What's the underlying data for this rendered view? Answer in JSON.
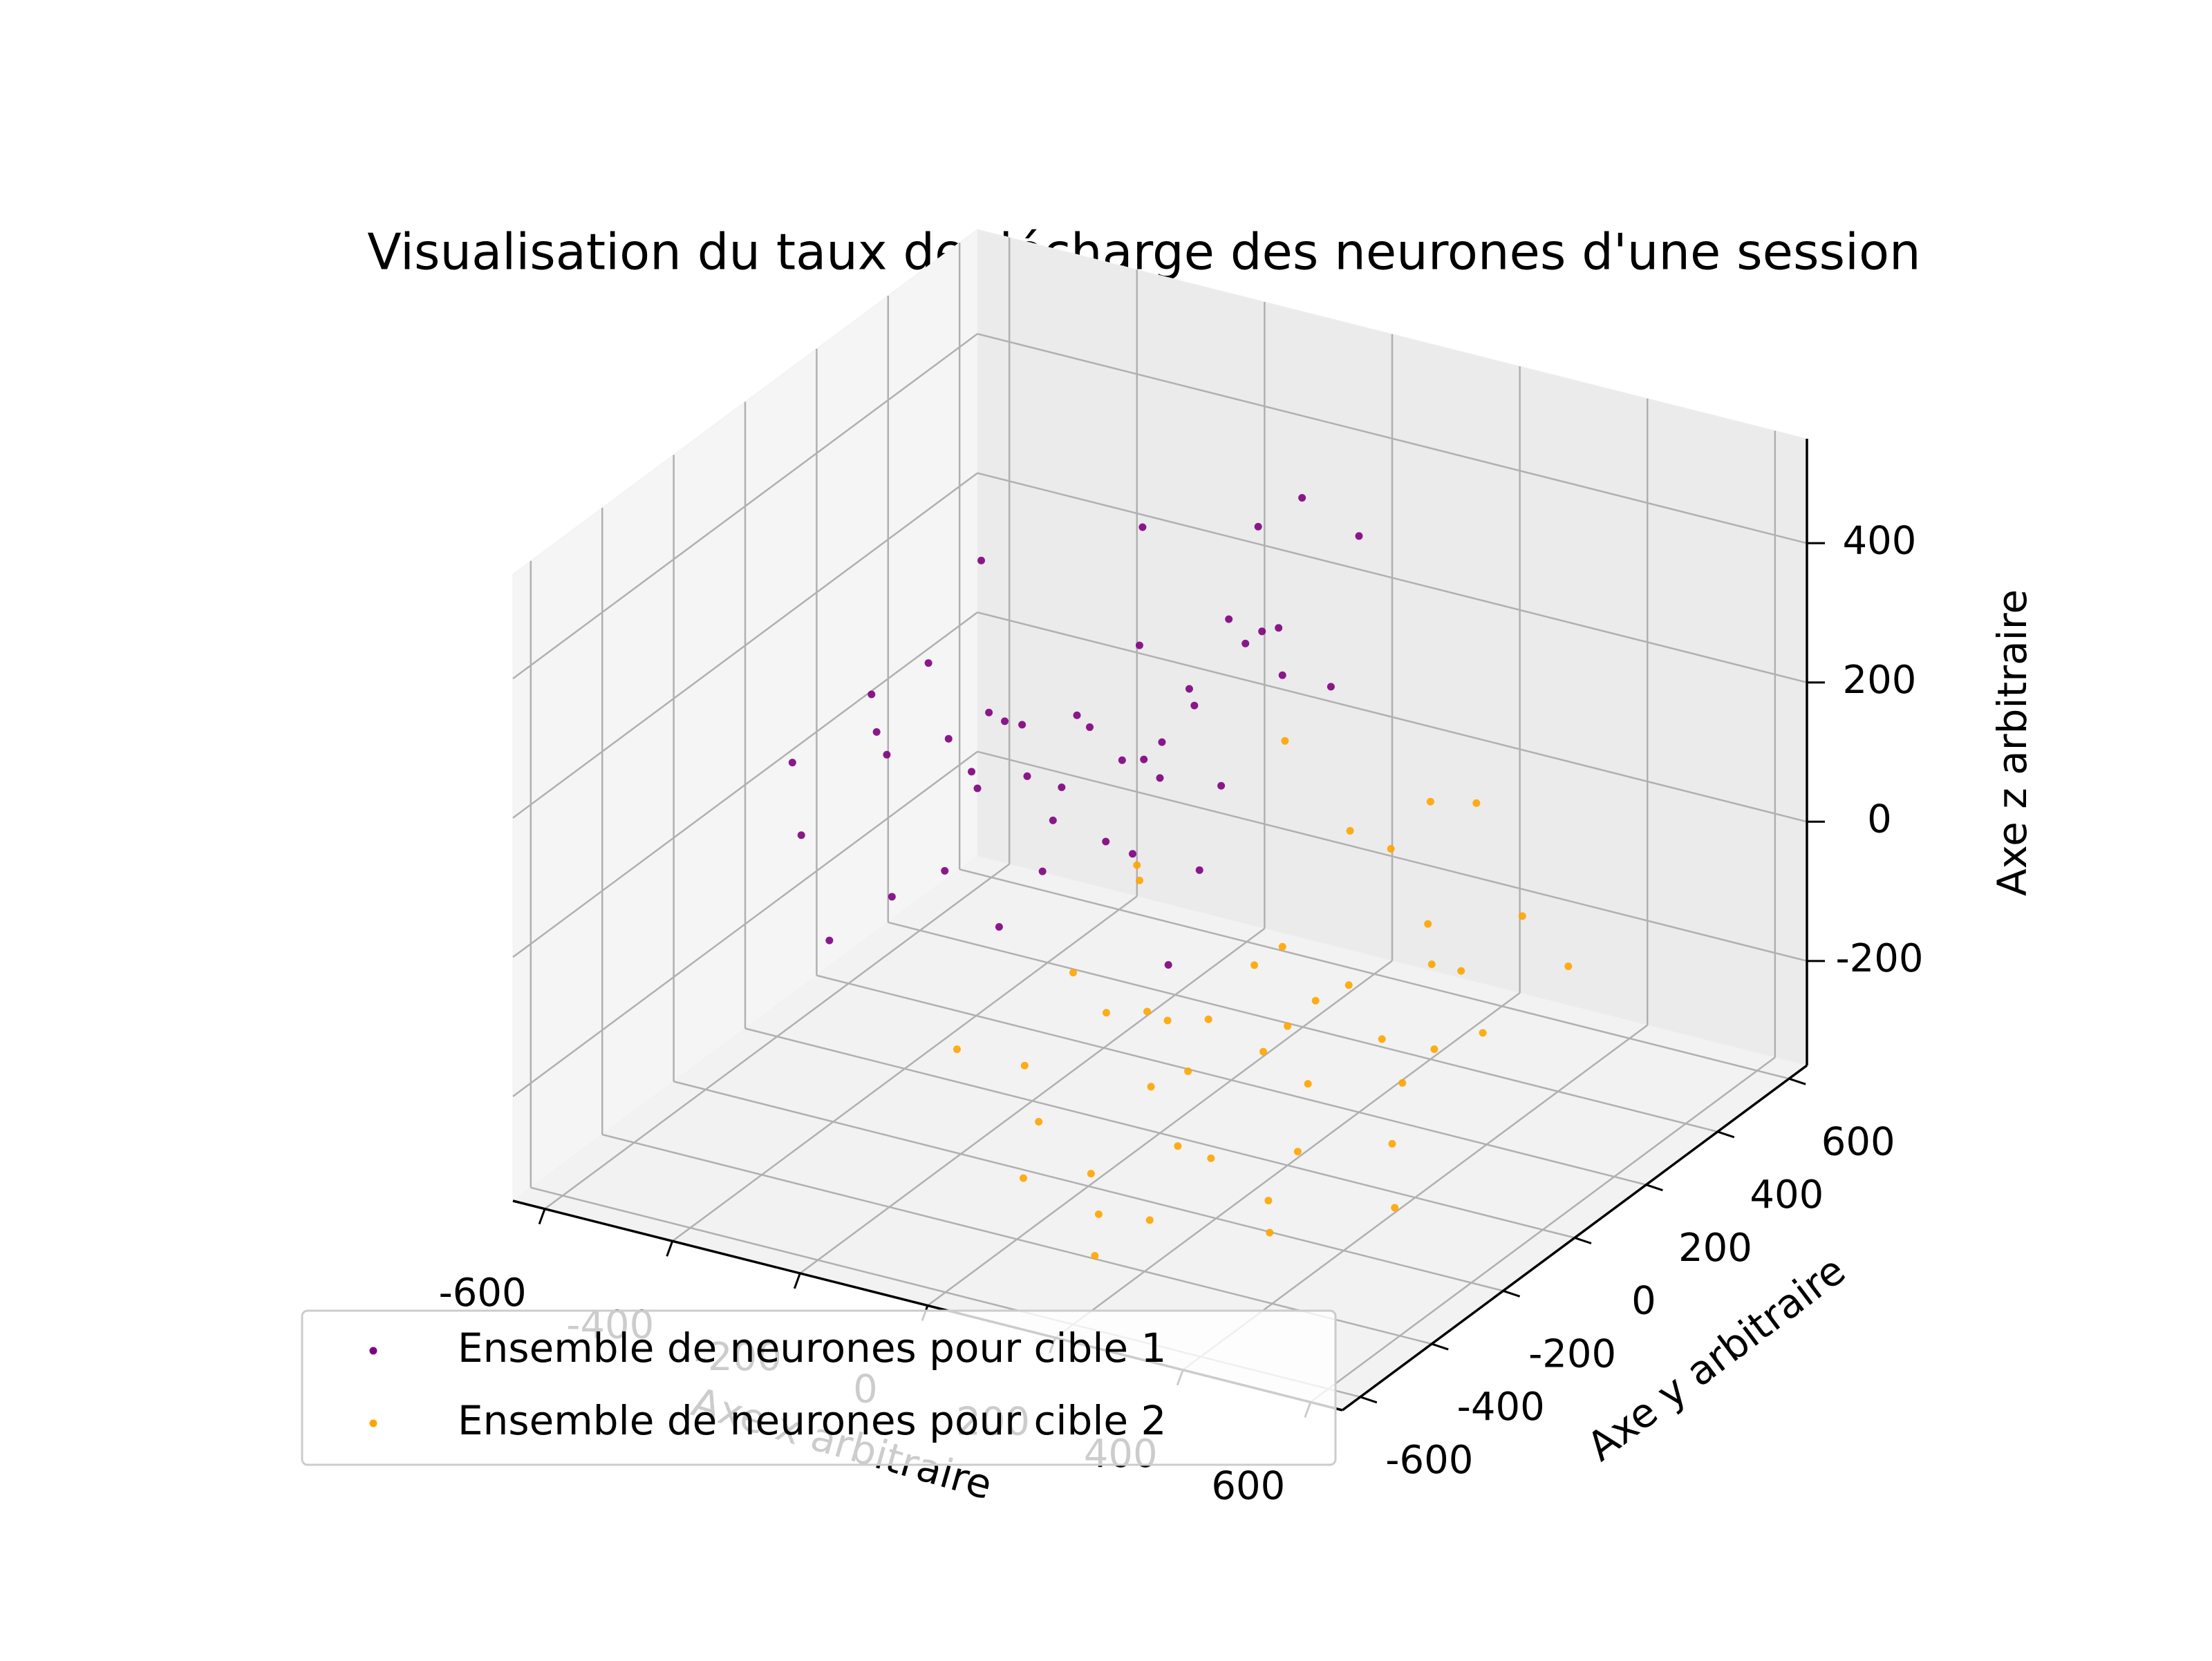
{
  "chart_data": {
    "type": "scatter3d",
    "title": "Visualisation du taux de décharge des neurones d'une session",
    "x_label": "Axe x arbitraire",
    "y_label": "Axe y arbitraire",
    "z_label": "Axe z arbitraire",
    "xlim": [
      -650,
      650
    ],
    "ylim": [
      -650,
      650
    ],
    "zlim": [
      -350,
      550
    ],
    "xticks": [
      -600,
      -400,
      -200,
      0,
      200,
      400,
      600
    ],
    "yticks": [
      -600,
      -400,
      -200,
      0,
      200,
      400,
      600
    ],
    "zticks": [
      -200,
      0,
      200,
      400
    ],
    "grid": true,
    "legend": "lower left",
    "series": [
      {
        "name": "Ensemble de neurones pour cible 1",
        "color": "#800080",
        "x": [
          -520,
          -480,
          -450,
          -430,
          -400,
          -380,
          -360,
          -340,
          -320,
          -300,
          -280,
          -260,
          -250,
          -230,
          -210,
          -200,
          -180,
          -160,
          -150,
          -130,
          -120,
          -100,
          -90,
          -70,
          -60,
          -40,
          -30,
          -10,
          0,
          20,
          40,
          60,
          80,
          100,
          -350,
          -270,
          -190,
          -110,
          -50,
          30,
          -420,
          -240,
          -140,
          10,
          70
        ],
        "y": [
          -100,
          50,
          -200,
          120,
          -50,
          200,
          -150,
          80,
          -20,
          150,
          -250,
          30,
          250,
          -100,
          100,
          300,
          -50,
          180,
          350,
          0,
          220,
          -150,
          400,
          80,
          300,
          -80,
          150,
          350,
          0,
          250,
          100,
          450,
          200,
          300,
          -300,
          -120,
          40,
          120,
          200,
          -30,
          250,
          380,
          -200,
          380,
          150
        ],
        "z": [
          100,
          150,
          50,
          180,
          120,
          90,
          200,
          60,
          150,
          110,
          20,
          170,
          80,
          130,
          60,
          190,
          140,
          80,
          120,
          220,
          100,
          60,
          180,
          140,
          260,
          90,
          200,
          240,
          160,
          280,
          120,
          350,
          250,
          200,
          -40,
          10,
          40,
          -20,
          -60,
          -90,
          280,
          320,
          -10,
          420,
          480
        ]
      },
      {
        "name": "Ensemble de neurones pour cible 2",
        "color": "#ffa500",
        "x": [
          -150,
          -100,
          -80,
          -50,
          -20,
          0,
          20,
          40,
          60,
          80,
          100,
          120,
          140,
          160,
          180,
          200,
          220,
          240,
          260,
          280,
          300,
          320,
          340,
          360,
          380,
          400,
          420,
          450,
          480,
          500,
          -120,
          -60,
          10,
          70,
          130,
          190,
          250,
          310,
          370,
          430,
          0,
          100,
          200,
          300,
          150
        ],
        "y": [
          -300,
          -200,
          -100,
          -250,
          0,
          -150,
          100,
          -50,
          -300,
          200,
          -100,
          50,
          -200,
          150,
          -350,
          0,
          -250,
          100,
          -50,
          250,
          -150,
          50,
          -300,
          200,
          0,
          300,
          -100,
          100,
          -200,
          250,
          150,
          50,
          -400,
          -150,
          300,
          -50,
          200,
          -250,
          100,
          0,
          350,
          -350,
          400,
          350,
          -450
        ],
        "z": [
          -150,
          -200,
          -100,
          -250,
          -180,
          -120,
          -220,
          -160,
          -280,
          -140,
          -200,
          -100,
          -260,
          -180,
          -300,
          -150,
          -240,
          -120,
          -200,
          -80,
          -250,
          -160,
          -300,
          -110,
          -190,
          -60,
          -230,
          -140,
          -270,
          -90,
          -50,
          -20,
          -260,
          -210,
          0,
          -170,
          40,
          -280,
          -60,
          -130,
          80,
          -310,
          20,
          60,
          -320
        ]
      }
    ]
  }
}
